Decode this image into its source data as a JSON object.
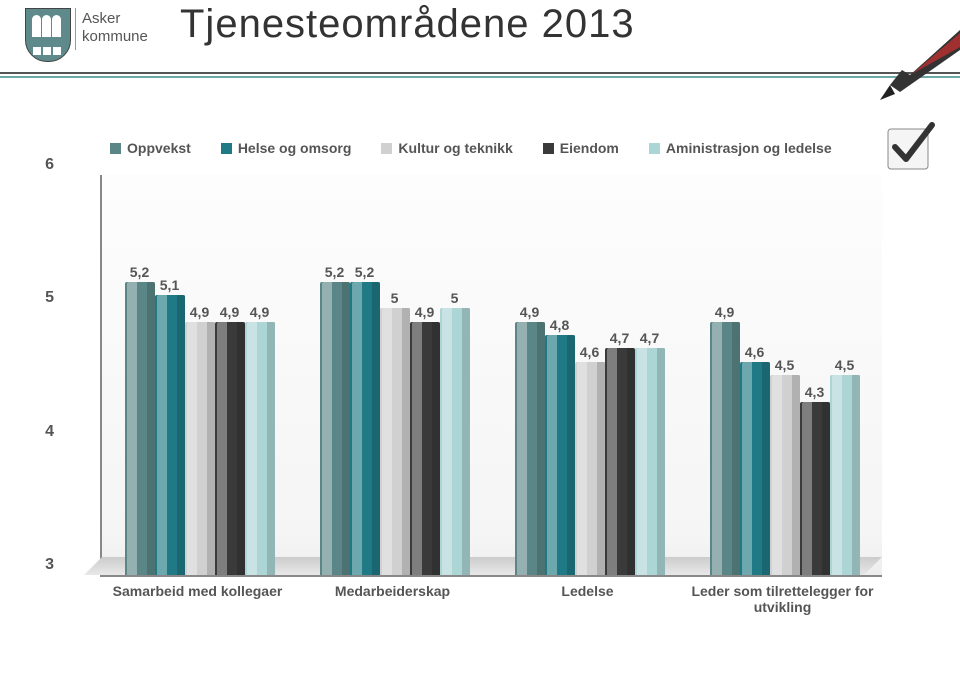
{
  "brand": {
    "line1": "Asker",
    "line2": "kommune"
  },
  "title": "Tjenesteområdene 2013",
  "legend": [
    {
      "label": "Oppvekst",
      "color": "#5b8687"
    },
    {
      "label": "Helse og omsorg",
      "color": "#1f7a85"
    },
    {
      "label": "Kultur og teknikk",
      "color": "#d0d0d0"
    },
    {
      "label": "Eiendom",
      "color": "#3a3a3a"
    },
    {
      "label": "Aministrasjon og ledelse",
      "color": "#acd5d6"
    }
  ],
  "chart": {
    "type": "bar",
    "ylim": [
      3,
      6
    ],
    "yticks": [
      3,
      4,
      5,
      6
    ],
    "label_fontsize": 14,
    "background_color": "#ffffff",
    "categories": [
      "Samarbeid med kollegaer",
      "Medarbeiderskap",
      "Ledelse",
      "Leder som tilrettelegger for utvikling"
    ],
    "series_colors": [
      "#5b8687",
      "#1f7a85",
      "#d0d0d0",
      "#3a3a3a",
      "#acd5d6"
    ],
    "groups": [
      [
        {
          "v": 5.2,
          "l": "5,2"
        },
        {
          "v": 5.1,
          "l": "5,1"
        },
        {
          "v": 4.9,
          "l": "4,9"
        },
        {
          "v": 4.9,
          "l": "4,9"
        },
        {
          "v": 4.9,
          "l": "4,9"
        }
      ],
      [
        {
          "v": 5.2,
          "l": "5,2"
        },
        {
          "v": 5.2,
          "l": "5,2"
        },
        {
          "v": 5.0,
          "l": "5"
        },
        {
          "v": 4.9,
          "l": "4,9"
        },
        {
          "v": 5.0,
          "l": "5"
        }
      ],
      [
        {
          "v": 4.9,
          "l": "4,9"
        },
        {
          "v": 4.8,
          "l": "4,8"
        },
        {
          "v": 4.6,
          "l": "4,6"
        },
        {
          "v": 4.7,
          "l": "4,7"
        },
        {
          "v": 4.7,
          "l": "4,7"
        }
      ],
      [
        {
          "v": 4.9,
          "l": "4,9"
        },
        {
          "v": 4.6,
          "l": "4,6"
        },
        {
          "v": 4.5,
          "l": "4,5"
        },
        {
          "v": 4.3,
          "l": "4,3"
        },
        {
          "v": 4.5,
          "l": "4,5"
        }
      ]
    ]
  }
}
